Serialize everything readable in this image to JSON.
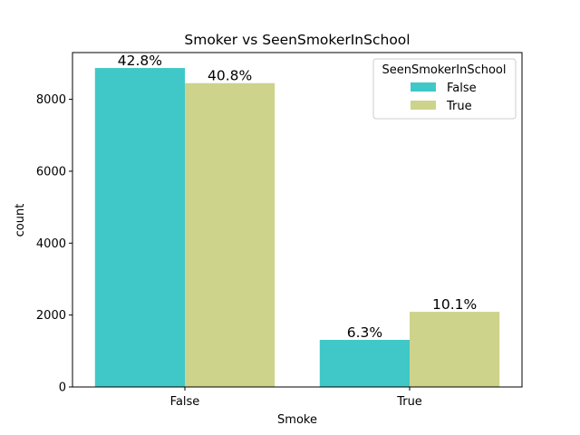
{
  "chart_data": {
    "type": "bar",
    "title": "Smoker vs SeenSmokerInSchool",
    "xlabel": "Smoke",
    "ylabel": "count",
    "categories": [
      "False",
      "True"
    ],
    "ylim": [
      0,
      9300
    ],
    "yticks": [
      "0",
      "2000",
      "4000",
      "6000",
      "8000"
    ],
    "series": [
      {
        "name": "False",
        "color": "#40C8C8",
        "values": [
          8870,
          1310
        ],
        "labels": [
          "42.8%",
          "6.3%"
        ]
      },
      {
        "name": "True",
        "color": "#CDD38B",
        "values": [
          8450,
          2090
        ],
        "labels": [
          "40.8%",
          "10.1%"
        ]
      }
    ],
    "legend": {
      "title": "SeenSmokerInSchool",
      "placement": "top-right"
    },
    "grid": false
  }
}
